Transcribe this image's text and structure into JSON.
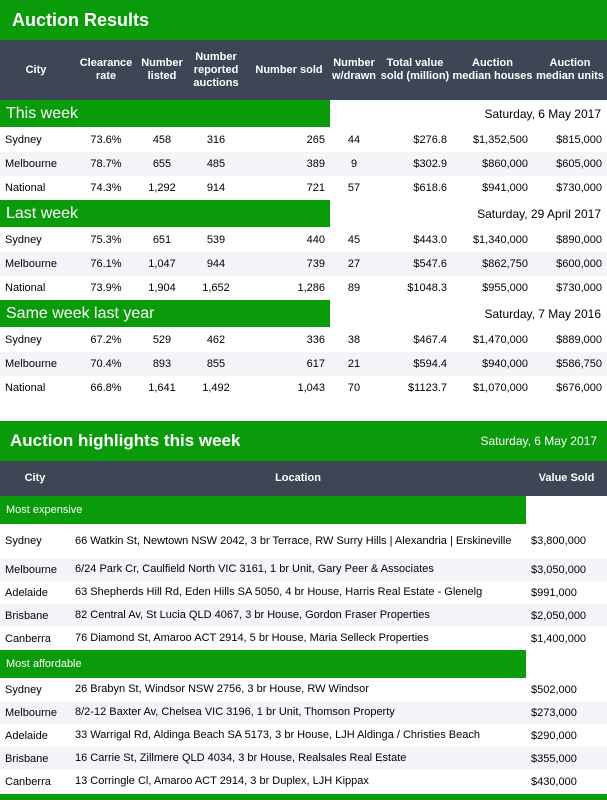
{
  "results": {
    "title": "Auction Results",
    "headers": [
      "City",
      "Clearance rate",
      "Number listed",
      "Number reported auctions",
      "Number sold",
      "Number w/drawn",
      "Total value sold (million)",
      "Auction median houses",
      "Auction median units"
    ],
    "sections": [
      {
        "label": "This week",
        "date": "Saturday, 6 May 2017",
        "rows": [
          [
            "Sydney",
            "73.6%",
            "458",
            "316",
            "265",
            "44",
            "$276.8",
            "$1,352,500",
            "$815,000"
          ],
          [
            "Melbourne",
            "78.7%",
            "655",
            "485",
            "389",
            "9",
            "$302.9",
            "$860,000",
            "$605,000"
          ],
          [
            "National",
            "74.3%",
            "1,292",
            "914",
            "721",
            "57",
            "$618.6",
            "$941,000",
            "$730,000"
          ]
        ]
      },
      {
        "label": "Last week",
        "date": "Saturday, 29 April 2017",
        "rows": [
          [
            "Sydney",
            "75.3%",
            "651",
            "539",
            "440",
            "45",
            "$443.0",
            "$1,340,000",
            "$890,000"
          ],
          [
            "Melbourne",
            "76.1%",
            "1,047",
            "944",
            "739",
            "27",
            "$547.6",
            "$862,750",
            "$600,000"
          ],
          [
            "National",
            "73.9%",
            "1,904",
            "1,652",
            "1,286",
            "89",
            "$1048.3",
            "$955,000",
            "$730,000"
          ]
        ]
      },
      {
        "label": "Same week last year",
        "date": "Saturday, 7 May 2016",
        "rows": [
          [
            "Sydney",
            "67.2%",
            "529",
            "462",
            "336",
            "38",
            "$467.4",
            "$1,470,000",
            "$889,000"
          ],
          [
            "Melbourne",
            "70.4%",
            "893",
            "855",
            "617",
            "21",
            "$594.4",
            "$940,000",
            "$586,750"
          ],
          [
            "National",
            "66.8%",
            "1,641",
            "1,492",
            "1,043",
            "70",
            "$1123.7",
            "$1,070,000",
            "$676,000"
          ]
        ]
      }
    ]
  },
  "highlights": {
    "title": "Auction highlights this week",
    "date": "Saturday, 6 May 2017",
    "headers": [
      "City",
      "Location",
      "Value Sold"
    ],
    "sections": [
      {
        "label": "Most expensive",
        "rows": [
          [
            "Sydney",
            "66 Watkin St, Newtown NSW 2042, 3 br Terrace, RW Surry Hills | Alexandria | Erskineville",
            "$3,800,000"
          ],
          [
            "Melbourne",
            "6/24 Park Cr, Caulfield North VIC 3161, 1 br Unit, Gary Peer & Associates",
            "$3,050,000"
          ],
          [
            "Adelaide",
            "63 Shepherds Hill Rd, Eden Hills SA 5050, 4 br House, Harris Real Estate - Glenelg",
            "$991,000"
          ],
          [
            "Brisbane",
            "82 Central Av, St Lucia QLD 4067, 3 br House, Gordon Fraser Properties",
            "$2,050,000"
          ],
          [
            "Canberra",
            "76 Diamond St, Amaroo ACT 2914, 5 br House, Maria Selleck Properties",
            "$1,400,000"
          ]
        ]
      },
      {
        "label": "Most affordable",
        "rows": [
          [
            "Sydney",
            "26 Brabyn St, Windsor NSW 2756, 3 br House, RW Windsor",
            "$502,000"
          ],
          [
            "Melbourne",
            "8/2-12 Baxter Av, Chelsea VIC 3196, 1 br Unit, Thomson Property",
            "$273,000"
          ],
          [
            "Adelaide",
            "33 Warrigal Rd, Aldinga Beach SA 5173, 3 br House, LJH Aldinga / Christies Beach",
            "$290,000"
          ],
          [
            "Brisbane",
            "16 Carrie St, Zillmere QLD 4034, 3 br House, Realsales Real Estate",
            "$355,000"
          ],
          [
            "Canberra",
            "13 Corringle Cl, Amaroo ACT 2914, 3 br Duplex, LJH Kippax",
            "$430,000"
          ]
        ]
      }
    ]
  }
}
